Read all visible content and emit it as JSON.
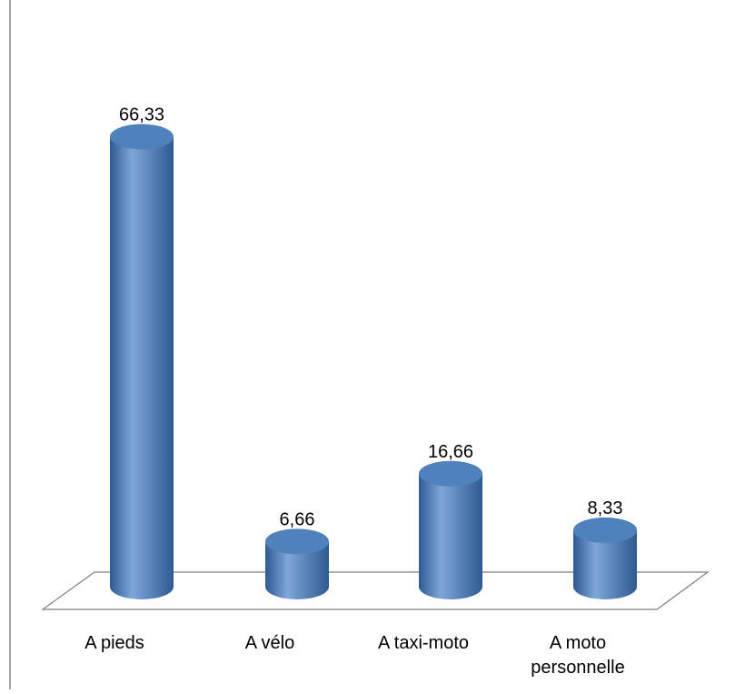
{
  "chart_data": {
    "type": "bar",
    "style": "3d-cylinder",
    "categories": [
      "A pieds",
      "A vélo",
      "A taxi-moto",
      "A moto personnelle"
    ],
    "category_lines": [
      [
        "A pieds"
      ],
      [
        "A vélo"
      ],
      [
        "A taxi-moto"
      ],
      [
        "A moto",
        "personnelle"
      ]
    ],
    "values": [
      66.33,
      6.66,
      16.66,
      8.33
    ],
    "data_labels": [
      "66,33",
      "6,66",
      "16,66",
      "8,33"
    ],
    "title": "",
    "xlabel": "",
    "ylabel": "",
    "ylim": [
      0,
      70
    ],
    "grid": false,
    "legend": "none",
    "colors": {
      "bar": "#4F81BD",
      "bar_dark": "#2E5A92",
      "bar_light": "#7FA6D8",
      "floor_stroke": "#7F7F7F",
      "border": "#868686",
      "text": "#000000"
    }
  }
}
